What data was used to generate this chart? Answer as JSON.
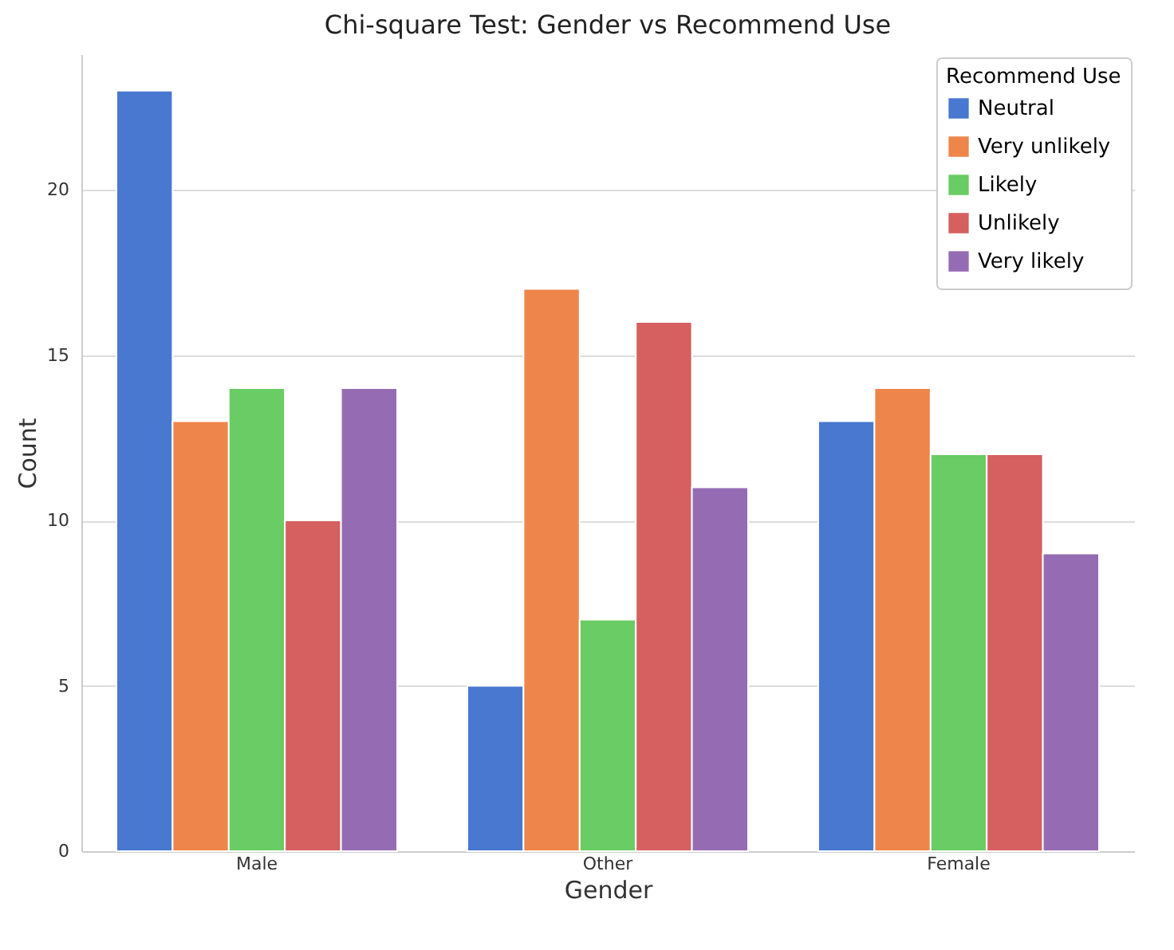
{
  "chart_data": {
    "type": "bar",
    "title": "Chi-square Test: Gender vs Recommend Use",
    "xlabel": "Gender",
    "ylabel": "Count",
    "legend_title": "Recommend Use",
    "categories": [
      "Male",
      "Other",
      "Female"
    ],
    "series": [
      {
        "name": "Neutral",
        "color": "#4878d0",
        "values": [
          23,
          5,
          13
        ]
      },
      {
        "name": "Very unlikely",
        "color": "#ee854a",
        "values": [
          13,
          17,
          14
        ]
      },
      {
        "name": "Likely",
        "color": "#6acc64",
        "values": [
          14,
          7,
          12
        ]
      },
      {
        "name": "Unlikely",
        "color": "#d65f5f",
        "values": [
          10,
          16,
          12
        ]
      },
      {
        "name": "Very likely",
        "color": "#956cb4",
        "values": [
          14,
          11,
          9
        ]
      }
    ],
    "ylim": [
      0,
      24.1
    ],
    "yticks": [
      0,
      5,
      10,
      15,
      20
    ],
    "grid": "y",
    "legend": "top right"
  }
}
